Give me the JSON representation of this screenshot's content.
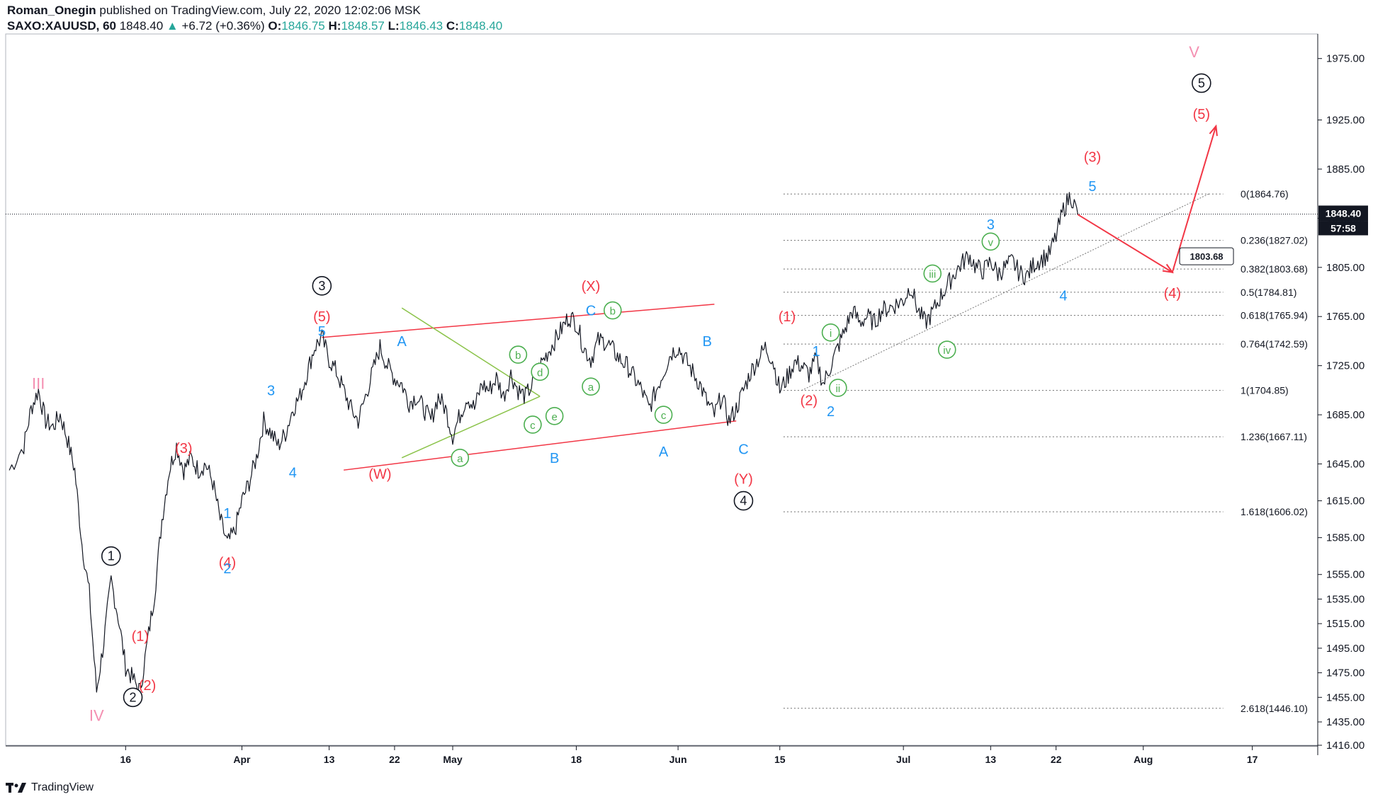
{
  "header": {
    "author": "Roman_Onegin",
    "published": "published on TradingView.com, July 22, 2020 12:02:06 MSK",
    "symbol": "SAXO:XAUUSD, 60",
    "last": "1848.40",
    "change_arrow": "▲",
    "change": "+6.72 (+0.36%)",
    "o_label": "O:",
    "o": "1846.75",
    "h_label": "H:",
    "h": "1848.57",
    "l_label": "L:",
    "l": "1846.43",
    "c_label": "C:",
    "c": "1848.40"
  },
  "footer": {
    "brand": "TradingView",
    "logo_icon": "tradingview-logo-icon"
  },
  "colors": {
    "red": "#f23645",
    "blue": "#2196f3",
    "green": "#4caf50",
    "pink": "#f48fb1",
    "black": "#131722",
    "lightgreen": "#8bc34a"
  },
  "chart_data": {
    "type": "line",
    "title": "",
    "xlabel": "",
    "ylabel": "",
    "ylim": [
      1416,
      1995
    ],
    "x_ticks": [
      {
        "t": 16,
        "label": "16"
      },
      {
        "t": 32,
        "label": "Apr"
      },
      {
        "t": 44,
        "label": "13"
      },
      {
        "t": 53,
        "label": "22"
      },
      {
        "t": 61,
        "label": "May"
      },
      {
        "t": 78,
        "label": "18"
      },
      {
        "t": 92,
        "label": "Jun"
      },
      {
        "t": 106,
        "label": "15"
      },
      {
        "t": 123,
        "label": "Jul"
      },
      {
        "t": 135,
        "label": "13"
      },
      {
        "t": 144,
        "label": "22"
      },
      {
        "t": 156,
        "label": "Aug"
      },
      {
        "t": 171,
        "label": "17"
      }
    ],
    "y_ticks": [
      "1975.00",
      "1925.00",
      "1885.00",
      "1845.00",
      "1805.00",
      "1765.00",
      "1725.00",
      "1685.00",
      "1645.00",
      "1615.00",
      "1585.00",
      "1555.00",
      "1535.00",
      "1515.00",
      "1495.00",
      "1475.00",
      "1455.00",
      "1435.00",
      "1416.00"
    ],
    "last_price": {
      "value": 1848.4,
      "label": "1848.40",
      "countdown": "57:58"
    },
    "series": [
      {
        "points": [
          [
            0,
            1640
          ],
          [
            2,
            1660
          ],
          [
            3,
            1690
          ],
          [
            4,
            1705
          ],
          [
            5,
            1680
          ],
          [
            6,
            1675
          ],
          [
            7,
            1685
          ],
          [
            8,
            1665
          ],
          [
            9,
            1640
          ],
          [
            10,
            1580
          ],
          [
            11,
            1540
          ],
          [
            12,
            1460
          ],
          [
            13,
            1500
          ],
          [
            14,
            1550
          ],
          [
            15,
            1520
          ],
          [
            16,
            1480
          ],
          [
            17,
            1470
          ],
          [
            18,
            1460
          ],
          [
            19,
            1500
          ],
          [
            20,
            1540
          ],
          [
            21,
            1600
          ],
          [
            22,
            1640
          ],
          [
            23,
            1660
          ],
          [
            24,
            1640
          ],
          [
            25,
            1650
          ],
          [
            26,
            1640
          ],
          [
            27,
            1645
          ],
          [
            28,
            1630
          ],
          [
            29,
            1600
          ],
          [
            30,
            1580
          ],
          [
            31,
            1590
          ],
          [
            32,
            1615
          ],
          [
            33,
            1630
          ],
          [
            34,
            1650
          ],
          [
            35,
            1680
          ],
          [
            36,
            1670
          ],
          [
            37,
            1660
          ],
          [
            38,
            1670
          ],
          [
            39,
            1690
          ],
          [
            40,
            1700
          ],
          [
            41,
            1720
          ],
          [
            42,
            1740
          ],
          [
            43,
            1748
          ],
          [
            44,
            1730
          ],
          [
            45,
            1720
          ],
          [
            46,
            1705
          ],
          [
            47,
            1690
          ],
          [
            48,
            1680
          ],
          [
            49,
            1700
          ],
          [
            50,
            1720
          ],
          [
            51,
            1740
          ],
          [
            52,
            1725
          ],
          [
            53,
            1715
          ],
          [
            54,
            1710
          ],
          [
            55,
            1695
          ],
          [
            56,
            1700
          ],
          [
            57,
            1690
          ],
          [
            58,
            1680
          ],
          [
            59,
            1700
          ],
          [
            60,
            1690
          ],
          [
            61,
            1668
          ],
          [
            62,
            1685
          ],
          [
            63,
            1700
          ],
          [
            64,
            1690
          ],
          [
            65,
            1710
          ],
          [
            66,
            1705
          ],
          [
            67,
            1715
          ],
          [
            68,
            1700
          ],
          [
            69,
            1718
          ],
          [
            70,
            1705
          ],
          [
            71,
            1700
          ],
          [
            72,
            1710
          ],
          [
            73,
            1725
          ],
          [
            74,
            1735
          ],
          [
            75,
            1745
          ],
          [
            76,
            1755
          ],
          [
            77,
            1765
          ],
          [
            78,
            1760
          ],
          [
            79,
            1740
          ],
          [
            80,
            1730
          ],
          [
            81,
            1745
          ],
          [
            82,
            1745
          ],
          [
            83,
            1738
          ],
          [
            84,
            1730
          ],
          [
            85,
            1725
          ],
          [
            86,
            1715
          ],
          [
            87,
            1705
          ],
          [
            88,
            1690
          ],
          [
            89,
            1705
          ],
          [
            90,
            1720
          ],
          [
            91,
            1735
          ],
          [
            92,
            1740
          ],
          [
            93,
            1730
          ],
          [
            94,
            1720
          ],
          [
            95,
            1710
          ],
          [
            96,
            1695
          ],
          [
            97,
            1685
          ],
          [
            98,
            1700
          ],
          [
            99,
            1680
          ],
          [
            100,
            1690
          ],
          [
            101,
            1705
          ],
          [
            102,
            1720
          ],
          [
            103,
            1730
          ],
          [
            104,
            1740
          ],
          [
            105,
            1730
          ],
          [
            106,
            1705
          ],
          [
            107,
            1715
          ],
          [
            108,
            1728
          ],
          [
            109,
            1725
          ],
          [
            110,
            1718
          ],
          [
            111,
            1730
          ],
          [
            112,
            1710
          ],
          [
            113,
            1725
          ],
          [
            114,
            1740
          ],
          [
            115,
            1755
          ],
          [
            116,
            1770
          ],
          [
            117,
            1760
          ],
          [
            118,
            1765
          ],
          [
            119,
            1760
          ],
          [
            120,
            1770
          ],
          [
            121,
            1772
          ],
          [
            122,
            1775
          ],
          [
            123,
            1778
          ],
          [
            124,
            1790
          ],
          [
            125,
            1770
          ],
          [
            126,
            1760
          ],
          [
            127,
            1768
          ],
          [
            128,
            1780
          ],
          [
            129,
            1790
          ],
          [
            130,
            1800
          ],
          [
            131,
            1808
          ],
          [
            132,
            1815
          ],
          [
            133,
            1805
          ],
          [
            134,
            1802
          ],
          [
            135,
            1810
          ],
          [
            136,
            1800
          ],
          [
            137,
            1805
          ],
          [
            138,
            1810
          ],
          [
            139,
            1800
          ],
          [
            140,
            1798
          ],
          [
            141,
            1808
          ],
          [
            142,
            1812
          ],
          [
            143,
            1815
          ],
          [
            144,
            1830
          ],
          [
            145,
            1852
          ],
          [
            146,
            1864
          ],
          [
            147,
            1848
          ]
        ]
      }
    ],
    "fib_levels": [
      {
        "v": 1864.76,
        "label": "0(1864.76)"
      },
      {
        "v": 1827.02,
        "label": "0.236(1827.02)"
      },
      {
        "v": 1803.68,
        "label": "0.382(1803.68)"
      },
      {
        "v": 1784.81,
        "label": "0.5(1784.81)"
      },
      {
        "v": 1765.94,
        "label": "0.618(1765.94)"
      },
      {
        "v": 1742.59,
        "label": "0.764(1742.59)"
      },
      {
        "v": 1704.85,
        "label": "1(1704.85)"
      },
      {
        "v": 1667.11,
        "label": "1.236(1667.11)"
      },
      {
        "v": 1606.02,
        "label": "1.618(1606.02)"
      },
      {
        "v": 1446.1,
        "label": "2.618(1446.10)"
      }
    ],
    "target_tag": {
      "v": 1803.68,
      "label": "1803.68"
    },
    "channel": [
      {
        "from": [
          43,
          1748
        ],
        "to": [
          97,
          1775
        ]
      },
      {
        "from": [
          46,
          1640
        ],
        "to": [
          100,
          1680
        ]
      }
    ],
    "triangle": [
      {
        "from": [
          54,
          1772
        ],
        "to": [
          73,
          1700
        ]
      },
      {
        "from": [
          54,
          1650
        ],
        "to": [
          73,
          1700
        ]
      }
    ],
    "trendline": {
      "from": [
        109,
        1704.85
      ],
      "to": [
        165,
        1864.76
      ]
    },
    "projection": [
      [
        147,
        1848
      ],
      [
        160,
        1801
      ],
      [
        166,
        1920
      ]
    ],
    "wave_labels": [
      {
        "t": 4,
        "v": 1710,
        "text": "III",
        "color": "pink",
        "style": "roman"
      },
      {
        "t": 12,
        "v": 1440,
        "text": "IV",
        "color": "pink",
        "style": "roman"
      },
      {
        "t": 163,
        "v": 1980,
        "text": "V",
        "color": "pink",
        "style": "roman"
      },
      {
        "t": 14,
        "v": 1570,
        "text": "1",
        "color": "black",
        "style": "circle"
      },
      {
        "t": 17,
        "v": 1455,
        "text": "2",
        "color": "black",
        "style": "circle"
      },
      {
        "t": 43,
        "v": 1790,
        "text": "3",
        "color": "black",
        "style": "circle"
      },
      {
        "t": 101,
        "v": 1615,
        "text": "4",
        "color": "black",
        "style": "circle"
      },
      {
        "t": 164,
        "v": 1955,
        "text": "5",
        "color": "black",
        "style": "circle"
      },
      {
        "t": 18,
        "v": 1505,
        "text": "(1)",
        "color": "red",
        "style": "paren"
      },
      {
        "t": 19,
        "v": 1465,
        "text": "(2)",
        "color": "red",
        "style": "paren"
      },
      {
        "t": 24,
        "v": 1658,
        "text": "(3)",
        "color": "red",
        "style": "paren"
      },
      {
        "t": 30,
        "v": 1565,
        "text": "(4)",
        "color": "red",
        "style": "paren"
      },
      {
        "t": 43,
        "v": 1765,
        "text": "(5)",
        "color": "red",
        "style": "paren"
      },
      {
        "t": 51,
        "v": 1637,
        "text": "(W)",
        "color": "red",
        "style": "paren"
      },
      {
        "t": 80,
        "v": 1790,
        "text": "(X)",
        "color": "red",
        "style": "paren"
      },
      {
        "t": 101,
        "v": 1633,
        "text": "(Y)",
        "color": "red",
        "style": "paren"
      },
      {
        "t": 107,
        "v": 1765,
        "text": "(1)",
        "color": "red",
        "style": "paren"
      },
      {
        "t": 110,
        "v": 1697,
        "text": "(2)",
        "color": "red",
        "style": "paren"
      },
      {
        "t": 149,
        "v": 1895,
        "text": "(3)",
        "color": "red",
        "style": "paren"
      },
      {
        "t": 160,
        "v": 1784,
        "text": "(4)",
        "color": "red",
        "style": "paren"
      },
      {
        "t": 164,
        "v": 1930,
        "text": "(5)",
        "color": "red",
        "style": "paren"
      },
      {
        "t": 30,
        "v": 1605,
        "text": "1",
        "color": "blue",
        "style": "plain"
      },
      {
        "t": 30,
        "v": 1560,
        "text": "2",
        "color": "blue",
        "style": "plain"
      },
      {
        "t": 36,
        "v": 1705,
        "text": "3",
        "color": "blue",
        "style": "plain"
      },
      {
        "t": 39,
        "v": 1638,
        "text": "4",
        "color": "blue",
        "style": "plain"
      },
      {
        "t": 43,
        "v": 1753,
        "text": "5",
        "color": "blue",
        "style": "plain"
      },
      {
        "t": 54,
        "v": 1745,
        "text": "A",
        "color": "blue",
        "style": "plain"
      },
      {
        "t": 75,
        "v": 1650,
        "text": "B",
        "color": "blue",
        "style": "plain"
      },
      {
        "t": 80,
        "v": 1770,
        "text": "C",
        "color": "blue",
        "style": "plain"
      },
      {
        "t": 90,
        "v": 1655,
        "text": "A",
        "color": "blue",
        "style": "plain"
      },
      {
        "t": 96,
        "v": 1745,
        "text": "B",
        "color": "blue",
        "style": "plain"
      },
      {
        "t": 101,
        "v": 1657,
        "text": "C",
        "color": "blue",
        "style": "plain"
      },
      {
        "t": 111,
        "v": 1737,
        "text": "1",
        "color": "blue",
        "style": "plain"
      },
      {
        "t": 113,
        "v": 1688,
        "text": "2",
        "color": "blue",
        "style": "plain"
      },
      {
        "t": 135,
        "v": 1840,
        "text": "3",
        "color": "blue",
        "style": "plain"
      },
      {
        "t": 145,
        "v": 1782,
        "text": "4",
        "color": "blue",
        "style": "plain"
      },
      {
        "t": 149,
        "v": 1871,
        "text": "5",
        "color": "blue",
        "style": "plain"
      },
      {
        "t": 62,
        "v": 1650,
        "text": "a",
        "color": "green",
        "style": "circle"
      },
      {
        "t": 70,
        "v": 1734,
        "text": "b",
        "color": "green",
        "style": "circle"
      },
      {
        "t": 72,
        "v": 1677,
        "text": "c",
        "color": "green",
        "style": "circle"
      },
      {
        "t": 73,
        "v": 1720,
        "text": "d",
        "color": "green",
        "style": "circle"
      },
      {
        "t": 75,
        "v": 1684,
        "text": "e",
        "color": "green",
        "style": "circle"
      },
      {
        "t": 80,
        "v": 1708,
        "text": "a",
        "color": "green",
        "style": "circle"
      },
      {
        "t": 83,
        "v": 1770,
        "text": "b",
        "color": "green",
        "style": "circle"
      },
      {
        "t": 90,
        "v": 1685,
        "text": "c",
        "color": "green",
        "style": "circle"
      },
      {
        "t": 113,
        "v": 1752,
        "text": "i",
        "color": "green",
        "style": "circle"
      },
      {
        "t": 114,
        "v": 1707,
        "text": "ii",
        "color": "green",
        "style": "circle"
      },
      {
        "t": 127,
        "v": 1800,
        "text": "iii",
        "color": "green",
        "style": "circle"
      },
      {
        "t": 129,
        "v": 1738,
        "text": "iv",
        "color": "green",
        "style": "circle"
      },
      {
        "t": 135,
        "v": 1826,
        "text": "v",
        "color": "green",
        "style": "circle"
      }
    ],
    "grid": false,
    "legend": "none"
  }
}
